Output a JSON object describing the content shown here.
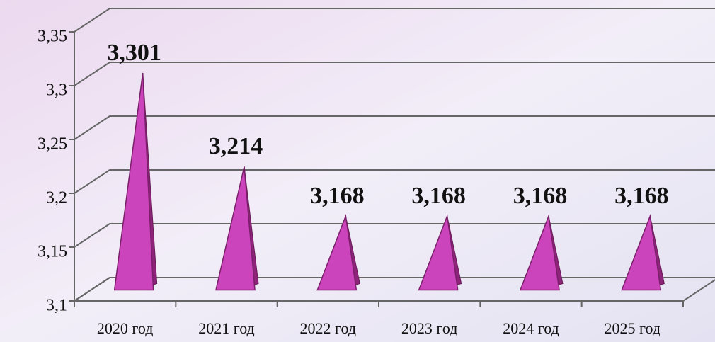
{
  "chart_data": {
    "type": "pyramid",
    "categories": [
      "2020 год",
      "2021 год",
      "2022 год",
      "2023 год",
      "2024 год",
      "2025 год"
    ],
    "values": [
      3.301,
      3.214,
      3.168,
      3.168,
      3.168,
      3.168
    ],
    "value_labels": [
      "3,301",
      "3,214",
      "3,168",
      "3,168",
      "3,168",
      "3,168"
    ],
    "color": "#cc44bb",
    "ylim": [
      3.1,
      3.35
    ],
    "yticks": [
      {
        "value": 3.1,
        "label": "3,1"
      },
      {
        "value": 3.15,
        "label": "3,15"
      },
      {
        "value": 3.2,
        "label": "3,2"
      },
      {
        "value": 3.25,
        "label": "3,25"
      },
      {
        "value": 3.3,
        "label": "3,3"
      },
      {
        "value": 3.35,
        "label": "3,35"
      }
    ],
    "grid": true
  }
}
